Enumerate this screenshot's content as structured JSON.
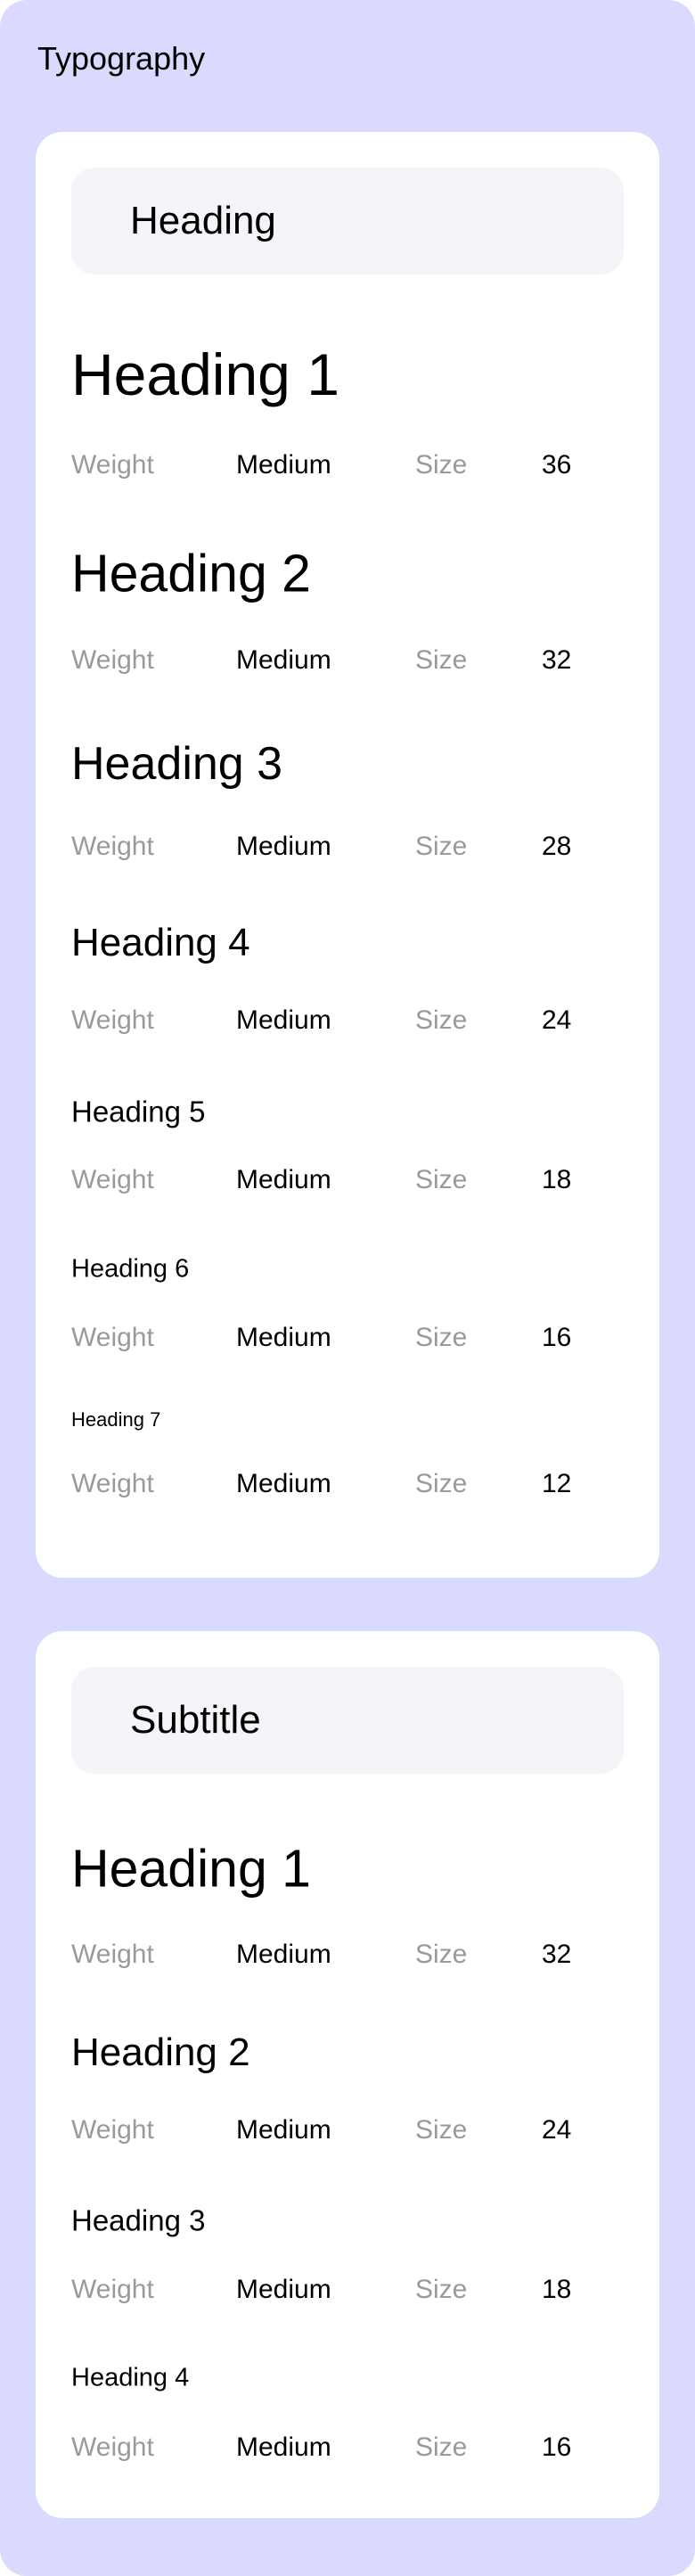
{
  "title": "Typography",
  "colors": {
    "background": "#dad9fe",
    "card": "#ffffff",
    "section_header": "#f5f5f9",
    "label": "#9a9a9a",
    "text": "#000000"
  },
  "sections": [
    {
      "header": "Heading",
      "items": [
        {
          "name": "Heading 1",
          "weight_label": "Weight",
          "weight": "Medium",
          "size_label": "Size",
          "size": "36"
        },
        {
          "name": "Heading 2",
          "weight_label": "Weight",
          "weight": "Medium",
          "size_label": "Size",
          "size": "32"
        },
        {
          "name": "Heading 3",
          "weight_label": "Weight",
          "weight": "Medium",
          "size_label": "Size",
          "size": "28"
        },
        {
          "name": "Heading 4",
          "weight_label": "Weight",
          "weight": "Medium",
          "size_label": "Size",
          "size": "24"
        },
        {
          "name": "Heading 5",
          "weight_label": "Weight",
          "weight": "Medium",
          "size_label": "Size",
          "size": "18"
        },
        {
          "name": "Heading 6",
          "weight_label": "Weight",
          "weight": "Medium",
          "size_label": "Size",
          "size": "16"
        },
        {
          "name": "Heading 7",
          "weight_label": "Weight",
          "weight": "Medium",
          "size_label": "Size",
          "size": "12"
        }
      ]
    },
    {
      "header": "Subtitle",
      "items": [
        {
          "name": "Heading 1",
          "weight_label": "Weight",
          "weight": "Medium",
          "size_label": "Size",
          "size": "32"
        },
        {
          "name": "Heading 2",
          "weight_label": "Weight",
          "weight": "Medium",
          "size_label": "Size",
          "size": "24"
        },
        {
          "name": "Heading 3",
          "weight_label": "Weight",
          "weight": "Medium",
          "size_label": "Size",
          "size": "18"
        },
        {
          "name": "Heading 4",
          "weight_label": "Weight",
          "weight": "Medium",
          "size_label": "Size",
          "size": "16"
        }
      ]
    }
  ]
}
